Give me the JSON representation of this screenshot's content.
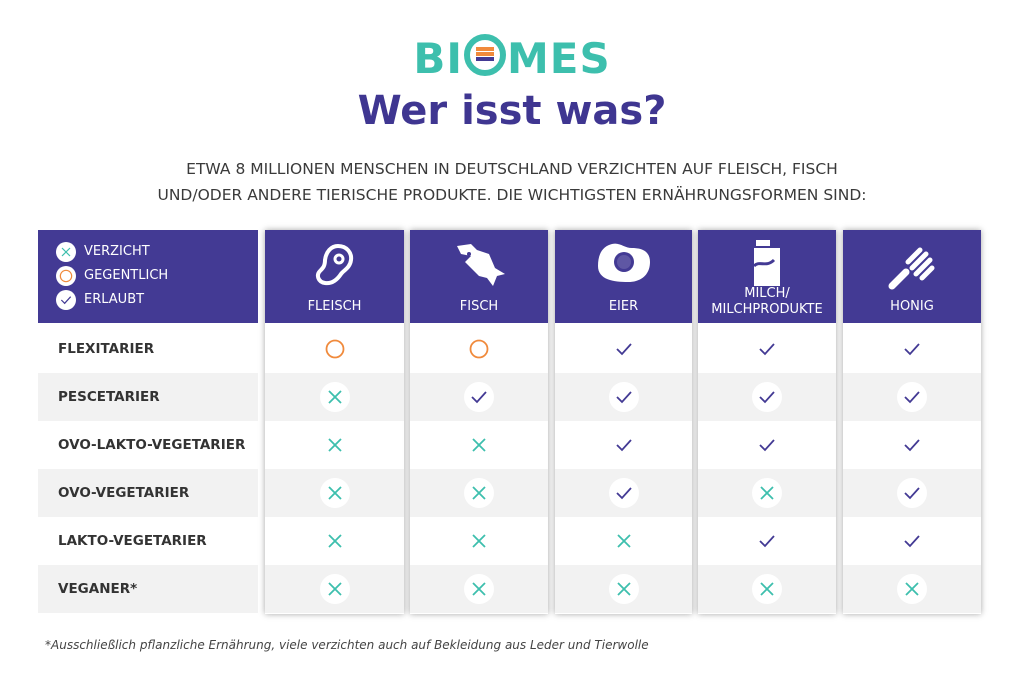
{
  "logo": {
    "text_before": "BI",
    "text_after": "MES",
    "full": "BIOMES"
  },
  "title": "Wer isst was?",
  "subtitle": [
    "ETWA 8 MILLIONEN MENSCHEN IN DEUTSCHLAND VERZICHTEN AUF FLEISCH, FISCH",
    "UND/ODER ANDERE TIERISCHE PRODUKTE. DIE WICHTIGSTEN ERNÄHRUNGSFORMEN SIND:"
  ],
  "legend": [
    {
      "symbol": "x",
      "label": "VERZICHT"
    },
    {
      "symbol": "o",
      "label": "GEGENTLICH"
    },
    {
      "symbol": "v",
      "label": "ERLAUBT"
    }
  ],
  "columns": [
    {
      "label": "FLEISCH",
      "icon": "meat-icon"
    },
    {
      "label": "FISCH",
      "icon": "fish-icon"
    },
    {
      "label": "EIER",
      "icon": "egg-icon"
    },
    {
      "label": "MILCH/ MILCHPRODUKTE",
      "icon": "milk-carton-icon"
    },
    {
      "label": "HONIG",
      "icon": "honey-dipper-icon"
    }
  ],
  "rows": [
    {
      "label": "FLEXITARIER",
      "values": [
        "o",
        "o",
        "v",
        "v",
        "v"
      ]
    },
    {
      "label": "PESCETARIER",
      "values": [
        "x",
        "v",
        "v",
        "v",
        "v"
      ]
    },
    {
      "label": "OVO-LAKTO-VEGETARIER",
      "values": [
        "x",
        "x",
        "v",
        "v",
        "v"
      ]
    },
    {
      "label": "OVO-VEGETARIER",
      "values": [
        "x",
        "x",
        "v",
        "x",
        "v"
      ]
    },
    {
      "label": "LAKTO-VEGETARIER",
      "values": [
        "x",
        "x",
        "x",
        "v",
        "v"
      ]
    },
    {
      "label": "VEGANER*",
      "values": [
        "x",
        "x",
        "x",
        "x",
        "x"
      ]
    }
  ],
  "footnote": "*Ausschließlich pflanzliche Ernährung, viele verzichten auch auf Bekleidung aus Leder und Tierwolle",
  "colors": {
    "purple": "#433a94",
    "teal": "#3dbfad",
    "orange": "#f08a3c",
    "title": "#3f3691"
  }
}
